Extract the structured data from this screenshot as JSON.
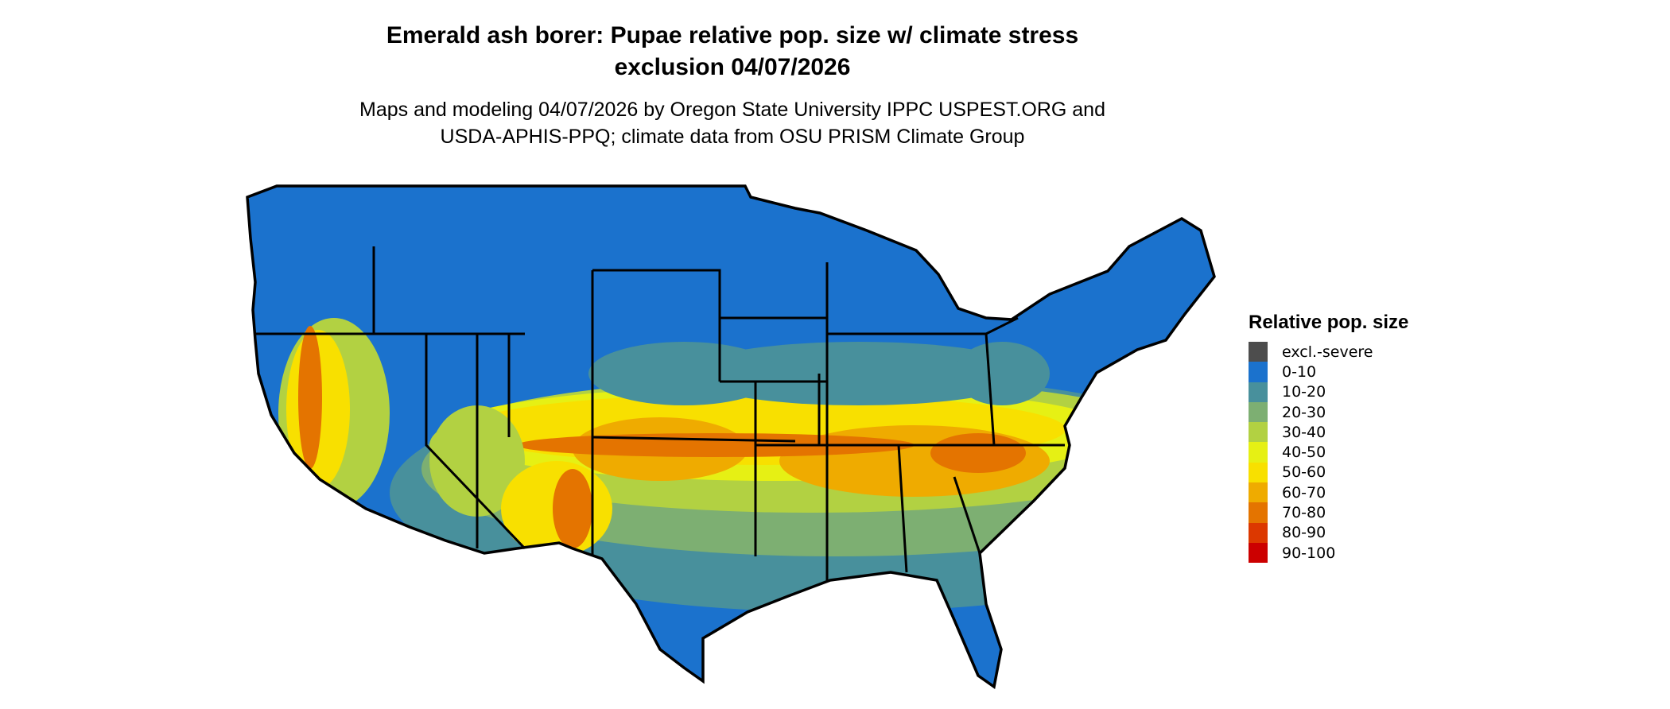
{
  "title_line1": "Emerald ash borer: Pupae relative pop. size w/ climate stress",
  "title_line2": "exclusion 04/07/2026",
  "subtitle_line1": "Maps and modeling 04/07/2026 by Oregon State University IPPC USPEST.ORG and",
  "subtitle_line2": "USDA-APHIS-PPQ; climate data from OSU PRISM Climate Group",
  "legend": {
    "title": "Relative pop. size",
    "items": [
      {
        "label": "excl.-severe",
        "color": "#4d4d4d"
      },
      {
        "label": "0-10",
        "color": "#1b72cd"
      },
      {
        "label": "10-20",
        "color": "#48909c"
      },
      {
        "label": "20-30",
        "color": "#7daf72"
      },
      {
        "label": "30-40",
        "color": "#b2d142"
      },
      {
        "label": "40-50",
        "color": "#e6f014"
      },
      {
        "label": "50-60",
        "color": "#f8e000"
      },
      {
        "label": "60-70",
        "color": "#efab00"
      },
      {
        "label": "70-80",
        "color": "#e47400"
      },
      {
        "label": "80-90",
        "color": "#dc3800"
      },
      {
        "label": "90-100",
        "color": "#cc0000"
      }
    ]
  }
}
